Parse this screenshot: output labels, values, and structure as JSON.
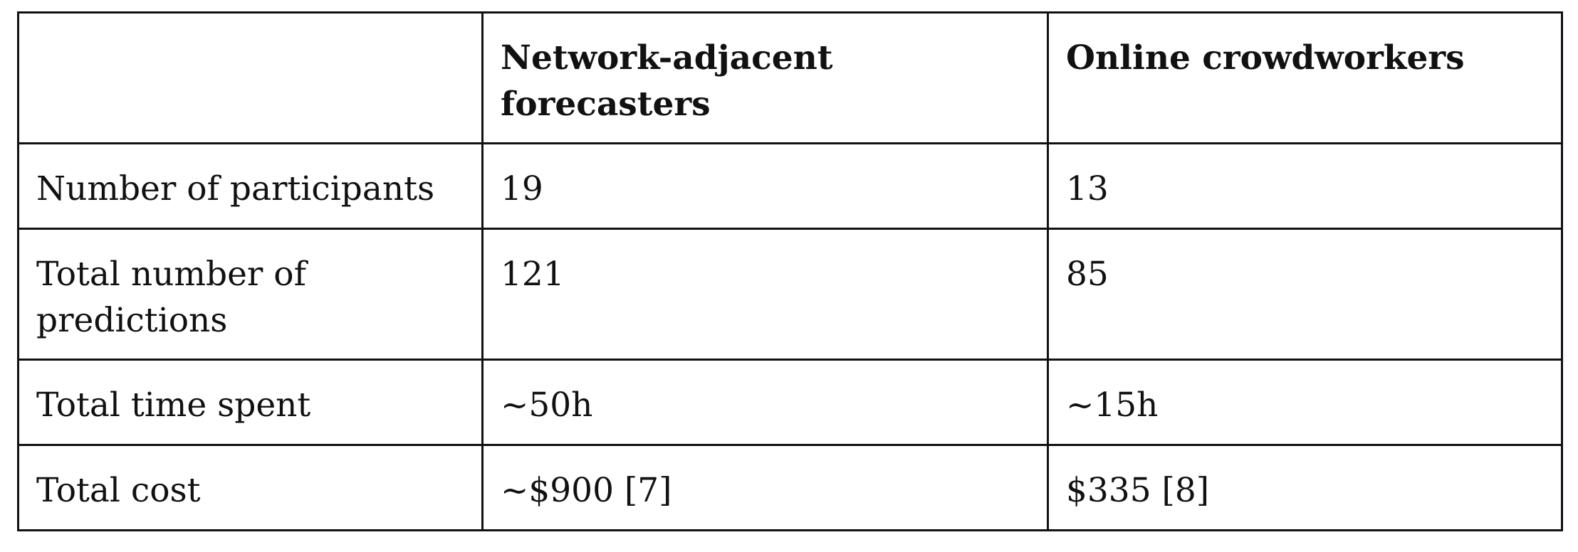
{
  "table": {
    "headers": [
      "",
      "Network-adjacent forecasters",
      "Online crowdworkers"
    ],
    "rows": [
      {
        "label": "Number of participants",
        "network": "19",
        "online": "13"
      },
      {
        "label": "Total number of predictions",
        "network": "121",
        "online": "85"
      },
      {
        "label": "Total time spent",
        "network": "~50h",
        "online": "~15h"
      },
      {
        "label": "Total cost",
        "network": "~$900 [7]",
        "online": "$335 [8]"
      }
    ]
  }
}
